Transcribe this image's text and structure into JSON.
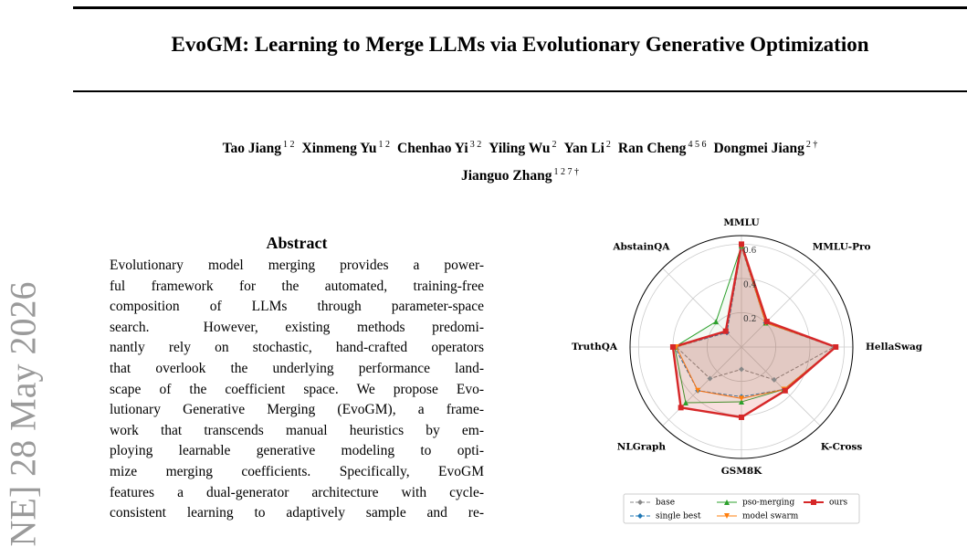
{
  "header": {
    "title": "EvoGM: Learning to Merge LLMs via Evolutionary Generative Optimization"
  },
  "watermark": "NE] 28 May 2026",
  "authors": {
    "lines": [
      [
        {
          "name": "Tao Jiang",
          "aff": "1 2"
        },
        {
          "name": "Xinmeng Yu",
          "aff": "1 2"
        },
        {
          "name": "Chenhao Yi",
          "aff": "3 2"
        },
        {
          "name": "Yiling Wu",
          "aff": "2"
        },
        {
          "name": "Yan Li",
          "aff": "2"
        },
        {
          "name": "Ran Cheng",
          "aff": "4 5 6"
        },
        {
          "name": "Dongmei Jiang",
          "aff": "2 †"
        }
      ],
      [
        {
          "name": "Jianguo Zhang",
          "aff": "1 2 7 †"
        }
      ]
    ]
  },
  "abstract": {
    "heading": "Abstract",
    "lines": [
      "Evolutionary model merging provides a power-",
      "ful framework for the automated, training-free",
      "composition of LLMs through parameter-space",
      "search.  However, existing methods predomi-",
      "nantly rely on stochastic, hand-crafted operators",
      "that overlook the underlying performance land-",
      "scape of the coefficient space. We propose Evo-",
      "lutionary Generative Merging (EvoGM), a frame-",
      "work that transcends manual heuristics by em-",
      "ploying learnable generative modeling to opti-",
      "mize merging coefficients. Specifically, EvoGM",
      "features a dual-generator architecture with cycle-",
      "consistent learning to adaptively sample and re-"
    ]
  },
  "chart_data": {
    "type": "radar",
    "categories": [
      "MMLU",
      "MMLU-Pro",
      "HellaSwag",
      "K-Cross",
      "GSM8K",
      "NLGraph",
      "TruthQA",
      "AbstainQA"
    ],
    "rlim": [
      0,
      0.65
    ],
    "rticks": [
      0.2,
      0.4,
      0.6
    ],
    "grid": true,
    "series": [
      {
        "name": "base",
        "color": "#888888",
        "marker": "diamond",
        "dashed": true,
        "values": [
          0.58,
          0.2,
          0.54,
          0.27,
          0.13,
          0.26,
          0.38,
          0.12
        ]
      },
      {
        "name": "single best",
        "color": "#1f77b4",
        "marker": "diamond",
        "dashed": true,
        "values": [
          0.59,
          0.2,
          0.55,
          0.35,
          0.29,
          0.36,
          0.39,
          0.12
        ]
      },
      {
        "name": "pso-merging",
        "color": "#2ca02c",
        "marker": "triangle",
        "dashed": false,
        "values": [
          0.59,
          0.2,
          0.55,
          0.35,
          0.32,
          0.46,
          0.39,
          0.21
        ]
      },
      {
        "name": "model swarm",
        "color": "#ff7f0e",
        "marker": "triangle-down",
        "dashed": false,
        "values": [
          0.59,
          0.2,
          0.55,
          0.35,
          0.3,
          0.36,
          0.38,
          0.13
        ]
      },
      {
        "name": "ours",
        "color": "#d62728",
        "marker": "square",
        "dashed": false,
        "values": [
          0.6,
          0.21,
          0.55,
          0.36,
          0.41,
          0.5,
          0.4,
          0.13
        ]
      }
    ]
  }
}
